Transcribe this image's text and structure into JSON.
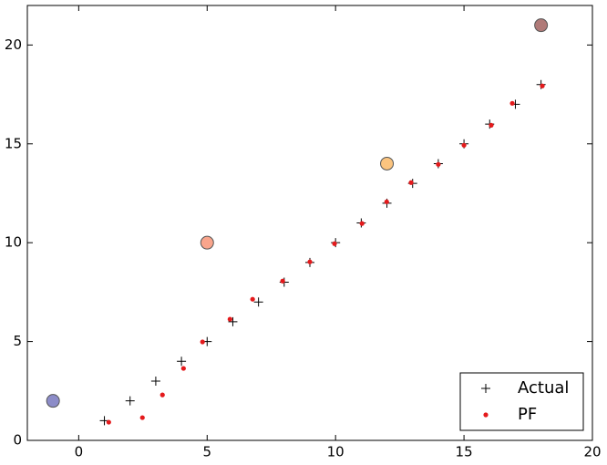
{
  "chart_data": {
    "type": "scatter",
    "xlim": [
      -2,
      20
    ],
    "xticks": [
      0,
      5,
      10,
      15,
      20
    ],
    "ylim": [
      0,
      22
    ],
    "yticks": [
      0,
      5,
      10,
      15,
      20
    ],
    "legend": "lower right",
    "series": [
      {
        "name": "Actual",
        "marker": "plus",
        "color": "#000000",
        "x": [
          1,
          2,
          3,
          4,
          5,
          6,
          7,
          8,
          9,
          10,
          11,
          12,
          13,
          14,
          15,
          16,
          17,
          18
        ],
        "values": [
          1,
          2,
          3,
          4,
          5,
          6,
          7,
          8,
          9,
          10,
          11,
          12,
          13,
          14,
          15,
          16,
          17,
          18
        ]
      },
      {
        "name": "PF",
        "marker": "dot",
        "color": "#e41a1c",
        "x": [
          1.17,
          2.48,
          3.26,
          4.08,
          4.82,
          5.89,
          6.77,
          7.94,
          9.0,
          9.96,
          11.03,
          11.99,
          12.94,
          14.0,
          15.0,
          16.06,
          16.88,
          18.05
        ],
        "values": [
          0.92,
          1.15,
          2.3,
          3.64,
          4.98,
          6.13,
          7.14,
          8.06,
          9.03,
          9.95,
          10.97,
          12.07,
          13.04,
          13.96,
          14.93,
          15.94,
          17.05,
          17.93
        ]
      }
    ],
    "landmarks": {
      "x": [
        -1,
        5,
        12,
        18
      ],
      "values": [
        2,
        10,
        14,
        21
      ],
      "colors": [
        "#8c8cc8",
        "#f9a58c",
        "#fbc47f",
        "#b07a78"
      ]
    }
  }
}
